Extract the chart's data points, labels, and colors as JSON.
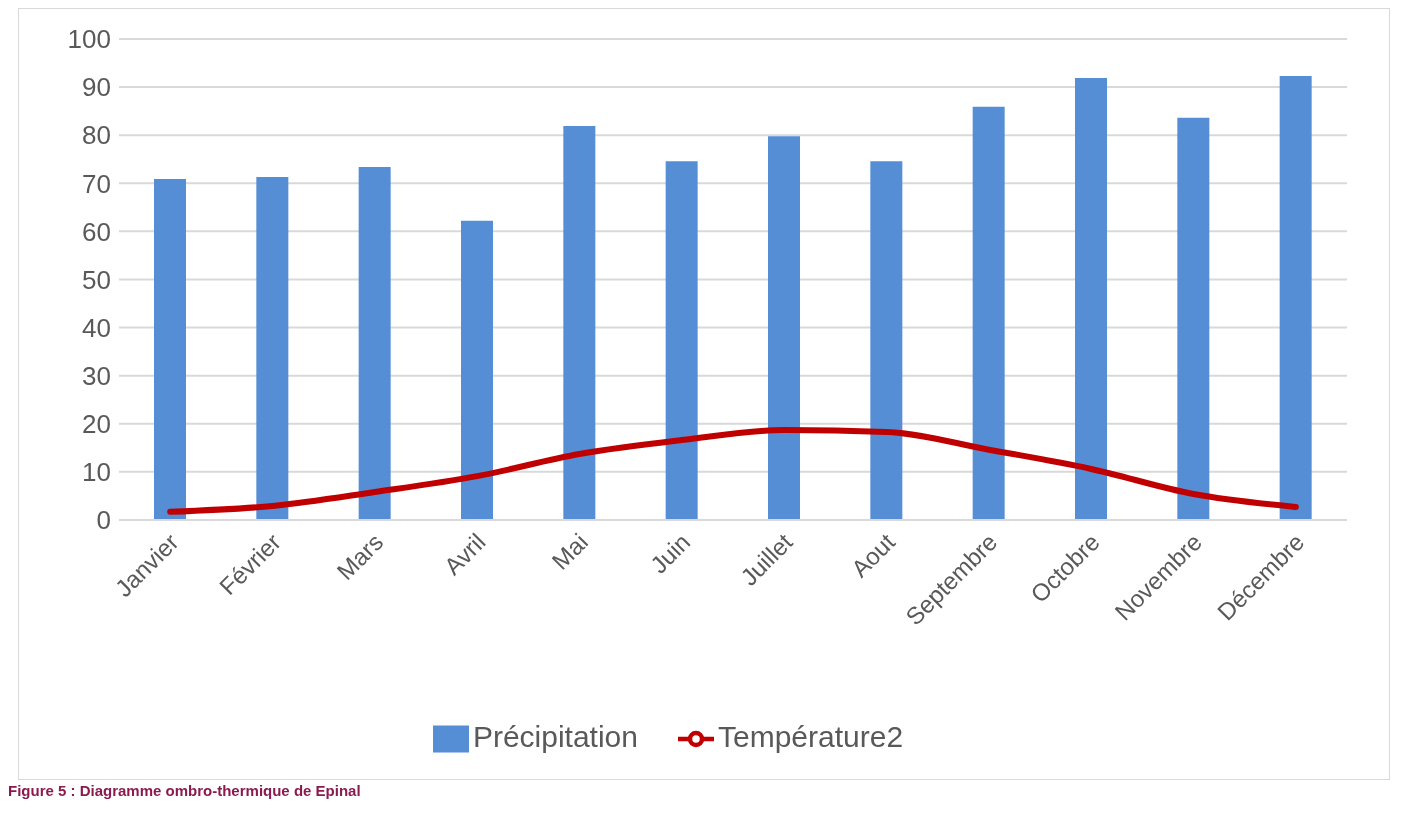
{
  "chart_data": {
    "type": "bar",
    "categories": [
      "Janvier",
      "Février",
      "Mars",
      "Avril",
      "Mai",
      "Juin",
      "Juillet",
      "Aout",
      "Septembre",
      "Octobre",
      "Novembre",
      "Décembre"
    ],
    "series": [
      {
        "name": "Précipitation",
        "color": "#558ed5",
        "values": [
          70.9,
          71.3,
          73.4,
          62.2,
          81.9,
          74.6,
          79.8,
          74.6,
          85.9,
          91.9,
          83.6,
          92.3
        ]
      },
      {
        "name": "Température2",
        "type": "line",
        "color": "#c00000",
        "values": [
          1.7,
          2.9,
          5.8,
          9.1,
          13.7,
          16.6,
          18.7,
          18.3,
          14.6,
          10.6,
          5.4,
          2.7
        ]
      }
    ],
    "ylim": [
      0,
      100
    ],
    "yticks": [
      0,
      10,
      20,
      30,
      40,
      50,
      60,
      70,
      80,
      90,
      100
    ],
    "grid": "y",
    "legend": "bottom",
    "marker": "none",
    "annotations": [
      "Figure 5 : Diagramme ombro-thermique de Epinal"
    ]
  }
}
